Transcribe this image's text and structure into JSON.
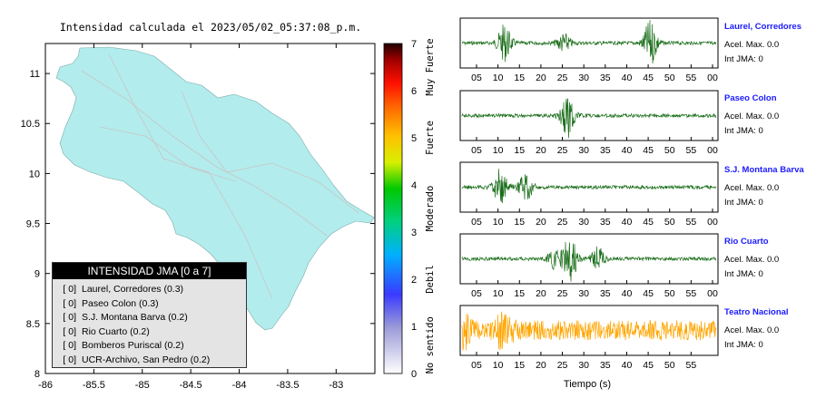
{
  "map": {
    "title": "Intensidad calculada el 2023/05/02_05:37:08_p.m.",
    "x_ticks": [
      "-86",
      "-85.5",
      "-85",
      "-84.5",
      "-84",
      "-83.5",
      "-83"
    ],
    "y_ticks": [
      "11",
      "10.5",
      "10",
      "9.5",
      "9",
      "8.5",
      "8"
    ],
    "land_color": "#b3ecec",
    "legend": {
      "title": "INTENSIDAD JMA [0 a 7]",
      "rows": [
        {
          "tag": "[ 0]",
          "name": "Laurel, Corredores (0.3)"
        },
        {
          "tag": "[ 0]",
          "name": "Paseo Colon (0.3)"
        },
        {
          "tag": "[ 0]",
          "name": "S.J. Montana Barva (0.2)"
        },
        {
          "tag": "[ 0]",
          "name": "Rio Cuarto (0.2)"
        },
        {
          "tag": "[ 0]",
          "name": "Bomberos Puriscal (0.2)"
        },
        {
          "tag": "[ 0]",
          "name": "UCR-Archivo, San Pedro (0.2)"
        }
      ]
    }
  },
  "colorbar": {
    "ticks": [
      "7",
      "6",
      "5",
      "4",
      "3",
      "2",
      "1",
      "0"
    ],
    "categories": [
      "Muy Fuerte",
      "Fuerte",
      "Moderado",
      "Debil",
      "No sentido"
    ]
  },
  "waveforms": {
    "x_ticks": [
      "05",
      "10",
      "15",
      "20",
      "25",
      "30",
      "35",
      "40",
      "45",
      "50",
      "55",
      "00"
    ],
    "x_ticks_last": [
      "05",
      "10",
      "15",
      "20",
      "25",
      "30",
      "35",
      "40",
      "45",
      "50",
      "55"
    ],
    "xlabel": "Tiempo (s)",
    "stations": [
      {
        "name": "Laurel, Corredores",
        "acel": "Acel. Max. 0.0",
        "jma": "Int JMA: 0",
        "color": "#1a6e1a"
      },
      {
        "name": "Paseo Colon",
        "acel": "Acel. Max. 0.0",
        "jma": "Int JMA: 0",
        "color": "#1a6e1a"
      },
      {
        "name": "S.J. Montana Barva",
        "acel": "Acel. Max. 0.0",
        "jma": "Int JMA: 0",
        "color": "#1a6e1a"
      },
      {
        "name": "Rio Cuarto",
        "acel": "Acel. Max. 0.0",
        "jma": "Int JMA: 0",
        "color": "#1a6e1a"
      },
      {
        "name": "Teatro Nacional",
        "acel": "Acel. Max. 0.0",
        "jma": "Int JMA: 0",
        "color": "#ffa500"
      }
    ]
  },
  "chart_data": [
    {
      "type": "heatmap",
      "title": "Intensidad calculada el 2023/05/02_05:37:08_p.m.",
      "xlabel": "",
      "ylabel": "",
      "xlim": [
        -86,
        -82.6
      ],
      "ylim": [
        8,
        11.3
      ],
      "colorbar_range": [
        0,
        7
      ],
      "legend_title": "INTENSIDAD JMA [0 a 7]",
      "stations": [
        {
          "name": "Laurel, Corredores",
          "intensity": 0,
          "value": 0.3
        },
        {
          "name": "Paseo Colon",
          "intensity": 0,
          "value": 0.3
        },
        {
          "name": "S.J. Montana Barva",
          "intensity": 0,
          "value": 0.2
        },
        {
          "name": "Rio Cuarto",
          "intensity": 0,
          "value": 0.2
        },
        {
          "name": "Bomberos Puriscal",
          "intensity": 0,
          "value": 0.2
        },
        {
          "name": "UCR-Archivo, San Pedro",
          "intensity": 0,
          "value": 0.2
        }
      ]
    },
    {
      "type": "line",
      "xlabel": "Tiempo (s)",
      "xlim": [
        0,
        60
      ],
      "series": [
        {
          "name": "Laurel, Corredores",
          "bursts": [
            [
              10,
              0.8
            ],
            [
              24,
              0.4
            ],
            [
              44.5,
              1.0
            ]
          ]
        },
        {
          "name": "Paseo Colon",
          "bursts": [
            [
              25,
              1.0
            ]
          ]
        },
        {
          "name": "S.J. Montana Barva",
          "bursts": [
            [
              9,
              0.8
            ],
            [
              15,
              0.6
            ]
          ]
        },
        {
          "name": "Rio Cuarto",
          "bursts": [
            [
              22,
              0.5
            ],
            [
              25.5,
              1.0
            ],
            [
              32,
              0.5
            ]
          ]
        },
        {
          "name": "Teatro Nacional",
          "bursts": [
            [
              10,
              0.8
            ],
            [
              0,
              0.7
            ]
          ]
        }
      ]
    }
  ]
}
